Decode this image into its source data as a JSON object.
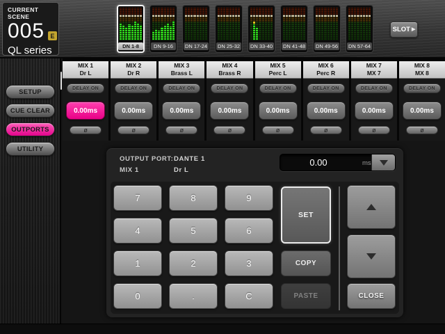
{
  "scene": {
    "label": "CURRENT SCENE",
    "number": "005",
    "edit_flag": "E",
    "device": "QL series"
  },
  "slot": {
    "label": "SLOT",
    "arrow": "▶"
  },
  "meter_banks": [
    {
      "label": "DN 1-8",
      "selected": true,
      "levels": [
        0.52,
        0.46,
        0.4,
        0.5,
        0.44,
        0.58,
        0.52,
        0.46
      ]
    },
    {
      "label": "DN 9-16",
      "selected": false,
      "levels": [
        0.28,
        0.34,
        0.3,
        0.4,
        0.44,
        0.52,
        0.42,
        0.6
      ]
    },
    {
      "label": "DN 17-24",
      "selected": false,
      "levels": [
        0,
        0,
        0,
        0,
        0,
        0,
        0,
        0
      ]
    },
    {
      "label": "DN 25-32",
      "selected": false,
      "levels": [
        0,
        0,
        0,
        0,
        0,
        0,
        0,
        0
      ]
    },
    {
      "label": "DN 33-40",
      "selected": false,
      "levels": [
        0,
        0.48,
        0.38,
        0,
        0,
        0,
        0,
        0
      ],
      "peak_index": 1
    },
    {
      "label": "DN 41-48",
      "selected": false,
      "levels": [
        0,
        0,
        0,
        0,
        0,
        0,
        0,
        0
      ]
    },
    {
      "label": "DN 49-56",
      "selected": false,
      "levels": [
        0,
        0,
        0,
        0,
        0,
        0,
        0,
        0
      ]
    },
    {
      "label": "DN 57-64",
      "selected": false,
      "levels": [
        0,
        0,
        0,
        0,
        0,
        0,
        0,
        0
      ]
    }
  ],
  "sidebar": {
    "items": [
      {
        "label": "SETUP",
        "active": false
      },
      {
        "label": "CUE CLEAR",
        "active": false
      },
      {
        "label": "OUTPORTS",
        "active": true
      },
      {
        "label": "UTILITY",
        "active": false
      }
    ]
  },
  "channels": [
    {
      "name": "MIX 1",
      "port_name": "Dr L",
      "delay_button": "DELAY ON",
      "delay_value": "0.00ms",
      "phase": "ø",
      "selected": true
    },
    {
      "name": "MIX 2",
      "port_name": "Dr R",
      "delay_button": "DELAY ON",
      "delay_value": "0.00ms",
      "phase": "ø",
      "selected": false
    },
    {
      "name": "MIX 3",
      "port_name": "Brass L",
      "delay_button": "DELAY ON",
      "delay_value": "0.00ms",
      "phase": "ø",
      "selected": false
    },
    {
      "name": "MIX 4",
      "port_name": "Brass R",
      "delay_button": "DELAY ON",
      "delay_value": "0.00ms",
      "phase": "ø",
      "selected": false
    },
    {
      "name": "MIX 5",
      "port_name": "Perc L",
      "delay_button": "DELAY ON",
      "delay_value": "0.00ms",
      "phase": "ø",
      "selected": false
    },
    {
      "name": "MIX 6",
      "port_name": "Perc R",
      "delay_button": "DELAY ON",
      "delay_value": "0.00ms",
      "phase": "ø",
      "selected": false
    },
    {
      "name": "MIX 7",
      "port_name": "MX 7",
      "delay_button": "DELAY ON",
      "delay_value": "0.00ms",
      "phase": "ø",
      "selected": false
    },
    {
      "name": "MIX 8",
      "port_name": "MX 8",
      "delay_button": "DELAY ON",
      "delay_value": "0.00ms",
      "phase": "ø",
      "selected": false
    }
  ],
  "editor": {
    "output_port_label": "OUTPUT PORT:",
    "output_port_value": "DANTE 1",
    "channel_name": "MIX 1",
    "channel_port": "Dr L",
    "delay_value": "0.00",
    "unit": "ms",
    "keys": [
      "7",
      "8",
      "9",
      "4",
      "5",
      "6",
      "1",
      "2",
      "3",
      "0",
      ".",
      "C"
    ],
    "set_label": "SET",
    "copy_label": "COPY",
    "paste_label": "PASTE",
    "close_label": "CLOSE",
    "paste_disabled": true
  },
  "colors": {
    "accent_pink": "#ee0f8e",
    "meter_green": "#34dc1e",
    "meter_peak_yellow": "#ddc019",
    "scene_badge_yellow": "#c2a42e",
    "selected_border_white": "#f2f2f2"
  }
}
